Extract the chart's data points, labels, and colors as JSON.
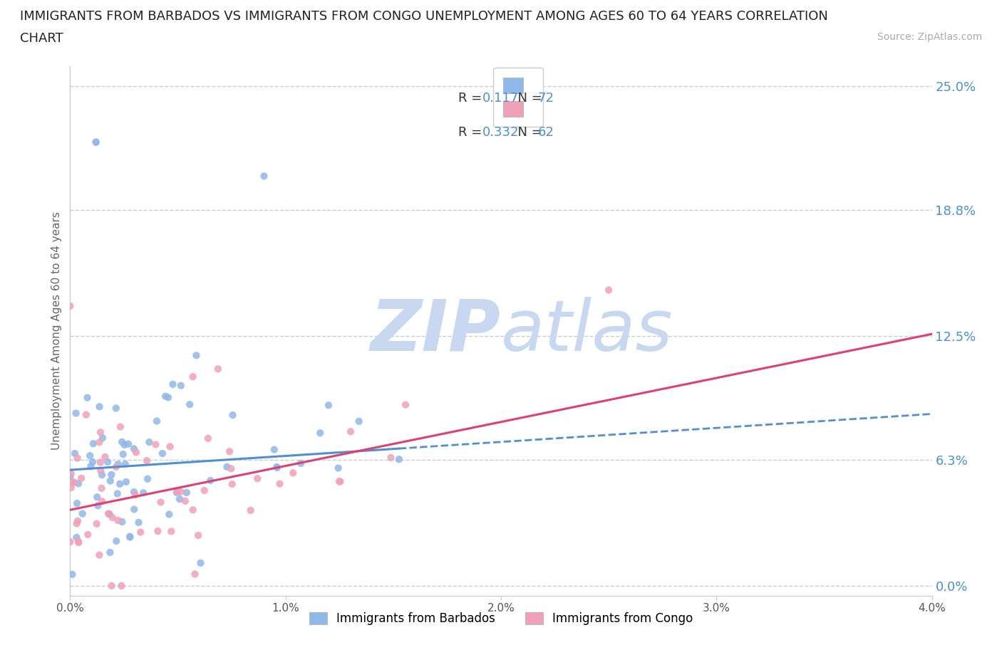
{
  "title_line1": "IMMIGRANTS FROM BARBADOS VS IMMIGRANTS FROM CONGO UNEMPLOYMENT AMONG AGES 60 TO 64 YEARS CORRELATION",
  "title_line2": "CHART",
  "source_text": "Source: ZipAtlas.com",
  "ylabel": "Unemployment Among Ages 60 to 64 years",
  "xlim": [
    0.0,
    0.04
  ],
  "ylim": [
    -0.005,
    0.26
  ],
  "ytick_vals": [
    0.0,
    0.063,
    0.125,
    0.188,
    0.25
  ],
  "ytick_labels": [
    "0.0%",
    "6.3%",
    "12.5%",
    "18.8%",
    "25.0%"
  ],
  "xticks": [
    0.0,
    0.01,
    0.02,
    0.03,
    0.04
  ],
  "xtick_labels": [
    "0.0%",
    "1.0%",
    "2.0%",
    "3.0%",
    "4.0%"
  ],
  "barbados_color": "#90b8e8",
  "congo_color": "#f0a0b8",
  "barbados_line_color": "#5090d0",
  "congo_line_color": "#e04070",
  "legend_R_barbados": "0.117",
  "legend_N_barbados": "72",
  "legend_R_congo": "0.332",
  "legend_N_congo": "62",
  "label_barbados": "Immigrants from Barbados",
  "label_congo": "Immigrants from Congo",
  "watermark_zip": "ZIP",
  "watermark_atlas": "atlas",
  "watermark_color_zip": "#c8d8f0",
  "watermark_color_atlas": "#c8d8f0",
  "axis_tick_color": "#4a90d9",
  "title_fontsize": 13,
  "legend_text_color": "#333333",
  "legend_rn_color": "#4a90d9",
  "source_color": "#aaaaaa",
  "grid_color": "#c0cfe0",
  "spine_color": "#cccccc"
}
